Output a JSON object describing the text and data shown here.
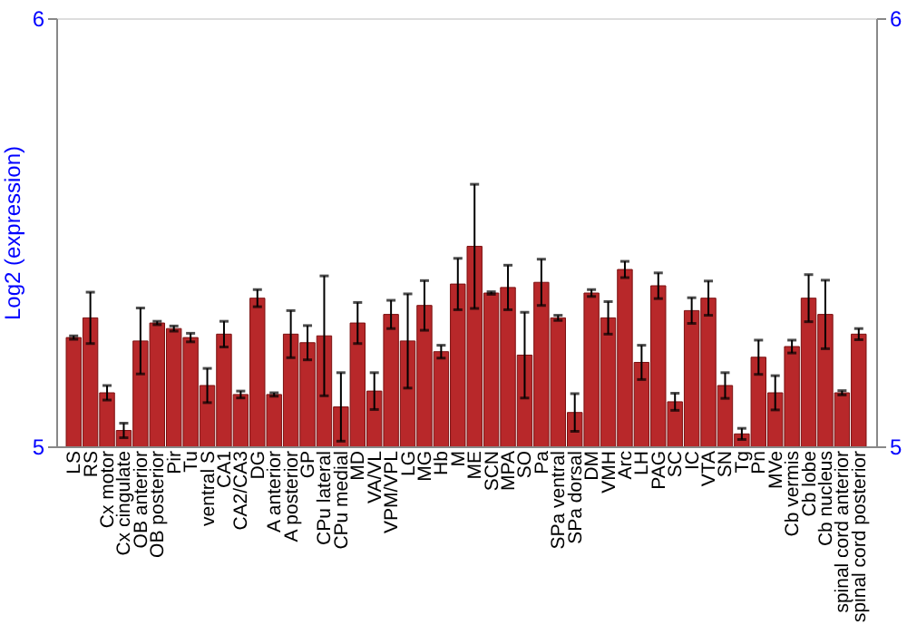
{
  "chart_data": {
    "type": "bar",
    "ylabel": "Log2 (expression)",
    "categories": [
      "LS",
      "RS",
      "Cx motor",
      "Cx cingulate",
      "OB anterior",
      "OB posterior",
      "Pir",
      "Tu",
      "ventral S",
      "CA1",
      "CA2/CA3",
      "DG",
      "A anterior",
      "A posterior",
      "GP",
      "CPu lateral",
      "CPu medial",
      "MD",
      "VA/VL",
      "VPM/VPL",
      "LG",
      "MG",
      "Hb",
      "M",
      "ME",
      "SCN",
      "MPA",
      "SO",
      "Pa",
      "SPa ventral",
      "SPa dorsal",
      "DM",
      "VMH",
      "Arc",
      "LH",
      "PAG",
      "SC",
      "IC",
      "VTA",
      "SN",
      "Tg",
      "Pn",
      "MVe",
      "Cb vermis",
      "Cb lobe",
      "Cb nucleus",
      "spinal cord anterior",
      "spinal cord posterior"
    ],
    "values": [
      5.254,
      5.3,
      5.125,
      5.037,
      5.246,
      5.288,
      5.275,
      5.254,
      5.142,
      5.262,
      5.121,
      5.346,
      5.121,
      5.262,
      5.242,
      5.258,
      5.092,
      5.288,
      5.129,
      5.308,
      5.246,
      5.329,
      5.221,
      5.379,
      5.467,
      5.358,
      5.371,
      5.213,
      5.383,
      5.3,
      5.079,
      5.358,
      5.3,
      5.413,
      5.196,
      5.375,
      5.104,
      5.317,
      5.346,
      5.142,
      5.029,
      5.208,
      5.125,
      5.233,
      5.346,
      5.308,
      5.125,
      5.262
    ],
    "errors": [
      0.004,
      0.06,
      0.017,
      0.017,
      0.077,
      0.004,
      0.006,
      0.01,
      0.04,
      0.03,
      0.008,
      0.02,
      0.004,
      0.055,
      0.04,
      0.14,
      0.08,
      0.048,
      0.043,
      0.033,
      0.11,
      0.058,
      0.015,
      0.06,
      0.145,
      0.003,
      0.052,
      0.1,
      0.054,
      0.006,
      0.044,
      0.008,
      0.038,
      0.019,
      0.04,
      0.03,
      0.02,
      0.03,
      0.04,
      0.03,
      0.013,
      0.04,
      0.04,
      0.015,
      0.055,
      0.08,
      0.005,
      0.013
    ],
    "color": "#b8282a",
    "ylim": [
      5,
      6
    ],
    "yticks": [
      5,
      6
    ],
    "y2lim": [
      5,
      6
    ],
    "y2ticks": [
      5,
      6
    ]
  }
}
